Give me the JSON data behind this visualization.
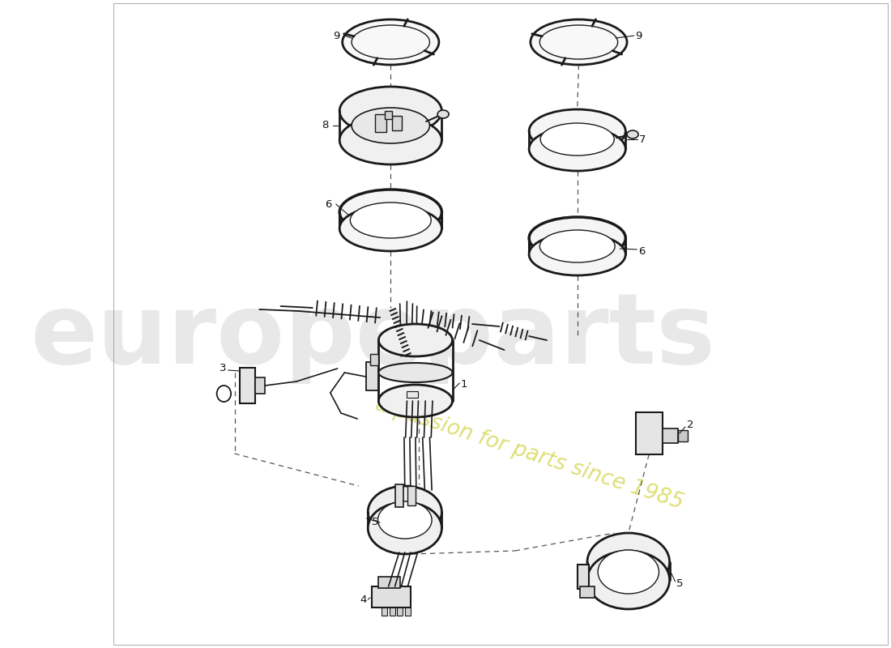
{
  "bg": "#ffffff",
  "lc": "#1a1a1a",
  "dc": "#555555",
  "wm1_color": "#cccccc",
  "wm2_color": "#d8d860",
  "fig_w": 11.0,
  "fig_h": 8.0,
  "dpi": 100
}
